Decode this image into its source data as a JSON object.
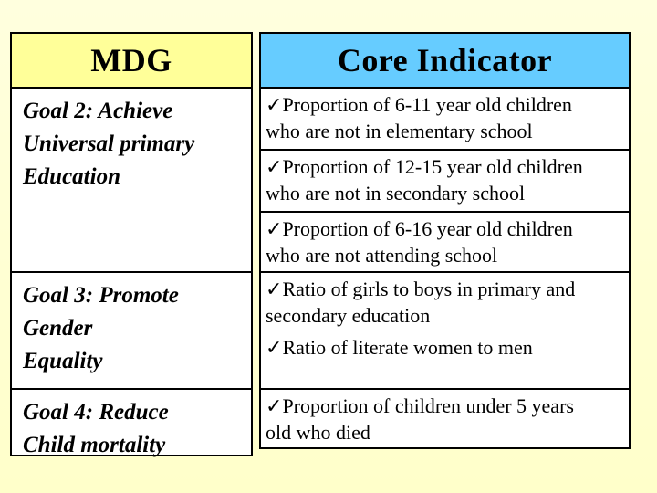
{
  "colors": {
    "slide_background": "#FFFFCC",
    "mdg_header_bg": "#FFFF99",
    "core_header_bg": "#66CCFF",
    "cell_bg": "#FFFFFF",
    "border": "#000000",
    "text": "#000000"
  },
  "check_glyph": "✓",
  "mdg_column": {
    "header": "MDG",
    "goals": [
      {
        "text": "Goal 2: Achieve\nUniversal primary\nEducation"
      },
      {
        "text": "Goal 3: Promote\nGender\nEquality"
      },
      {
        "text": "Goal 4: Reduce\nChild mortality"
      }
    ]
  },
  "core_column": {
    "header": "Core Indicator",
    "rows": [
      {
        "items": [
          {
            "text": "Proportion of 6-11 year old children\nwho are not in elementary school"
          }
        ]
      },
      {
        "items": [
          {
            "text": "Proportion of 12-15 year old children\nwho are not in secondary school"
          }
        ]
      },
      {
        "items": [
          {
            "text": "Proportion of 6-16 year old children\nwho are not attending school"
          }
        ]
      },
      {
        "items": [
          {
            "text": "Ratio of girls to boys in primary and\nsecondary education"
          },
          {
            "text": "Ratio of literate women to men"
          }
        ]
      },
      {
        "items": [
          {
            "text": "Proportion of children under 5 years\nold who died"
          }
        ]
      }
    ]
  }
}
